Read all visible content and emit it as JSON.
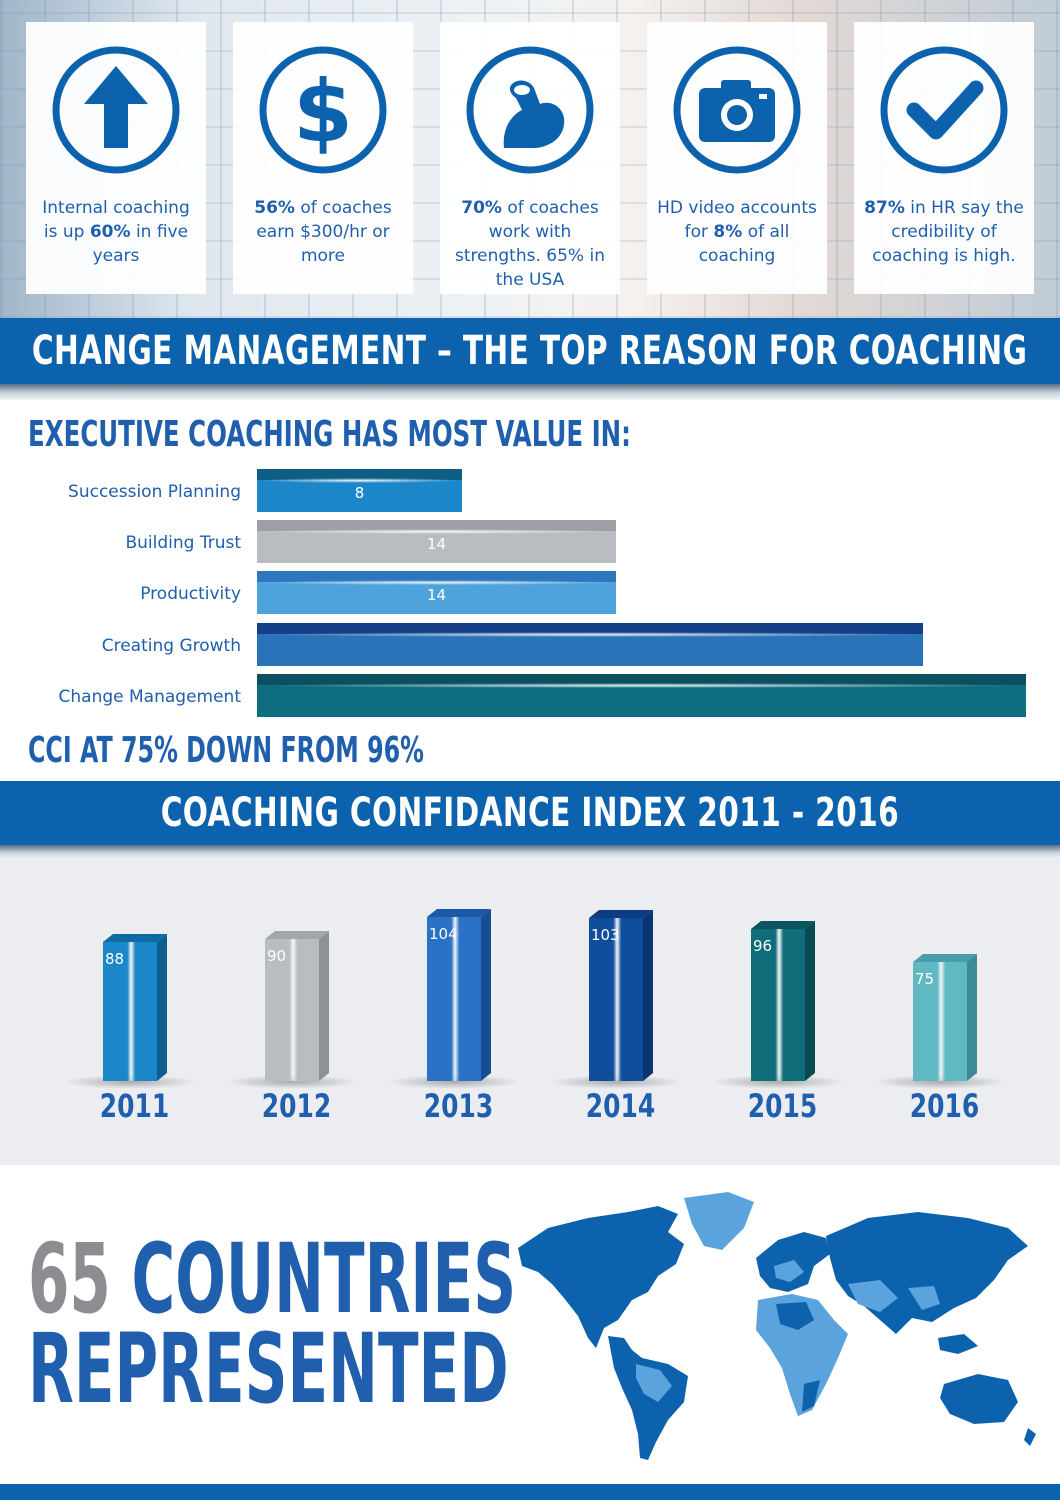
{
  "stats": [
    {
      "icon": "up-arrow-icon",
      "pre": "Internal coaching is up ",
      "bold": "60%",
      "post": " in five years"
    },
    {
      "icon": "dollar-icon",
      "pre": "",
      "bold": "56%",
      "post": " of coaches earn $300/hr or more"
    },
    {
      "icon": "flexed-arm-icon",
      "pre": "",
      "bold": "70%",
      "post": " of coaches work with strengths. 65% in the USA"
    },
    {
      "icon": "camera-icon",
      "pre": "HD video accounts for ",
      "bold": "8%",
      "post": " of all coaching"
    },
    {
      "icon": "checkmark-icon",
      "pre": "",
      "bold": "87%",
      "post": " in HR say the credibility of coaching is high."
    }
  ],
  "banner1": "CHANGE MANAGEMENT – THE TOP REASON FOR COACHING",
  "exec_heading": "EXECUTIVE COACHING HAS MOST VALUE IN:",
  "cci_heading": "CCI AT 75%  DOWN FROM 96%",
  "banner2": "COACHING CONFIDANCE INDEX 2011 - 2016",
  "countries": {
    "number": "65",
    "line1": "COUNTRIES",
    "line2": "REPRESENTED"
  },
  "colors": {
    "brand_blue": "#0d62ae",
    "text_blue": "#1f5fae",
    "grey_number": "#8b8d90"
  },
  "chart_data": [
    {
      "type": "bar",
      "orientation": "horizontal",
      "title": "EXECUTIVE COACHING HAS MOST VALUE IN:",
      "categories": [
        "Succession Planning",
        "Building Trust",
        "Productivity",
        "Creating Growth",
        "Change Management"
      ],
      "values": [
        8,
        14,
        14,
        26,
        30
      ],
      "value_labels": [
        "8",
        "14",
        "14",
        "",
        ""
      ],
      "xlim": [
        0,
        30
      ],
      "grid": false,
      "colors": [
        "#1b86c8",
        "#b9bcc1",
        "#4ea3dd",
        "#2b73b8",
        "#0e6d7e"
      ]
    },
    {
      "type": "bar",
      "title": "COACHING CONFIDANCE INDEX 2011 - 2016",
      "categories": [
        "2011",
        "2012",
        "2013",
        "2014",
        "2015",
        "2016"
      ],
      "values": [
        88,
        90,
        104,
        103,
        96,
        75
      ],
      "ylim": [
        0,
        110
      ],
      "grid": false,
      "colors": [
        "#1b86c8",
        "#b9bcc1",
        "#2a72c6",
        "#0e4e9a",
        "#0e6d78",
        "#5fb8c2"
      ]
    }
  ]
}
